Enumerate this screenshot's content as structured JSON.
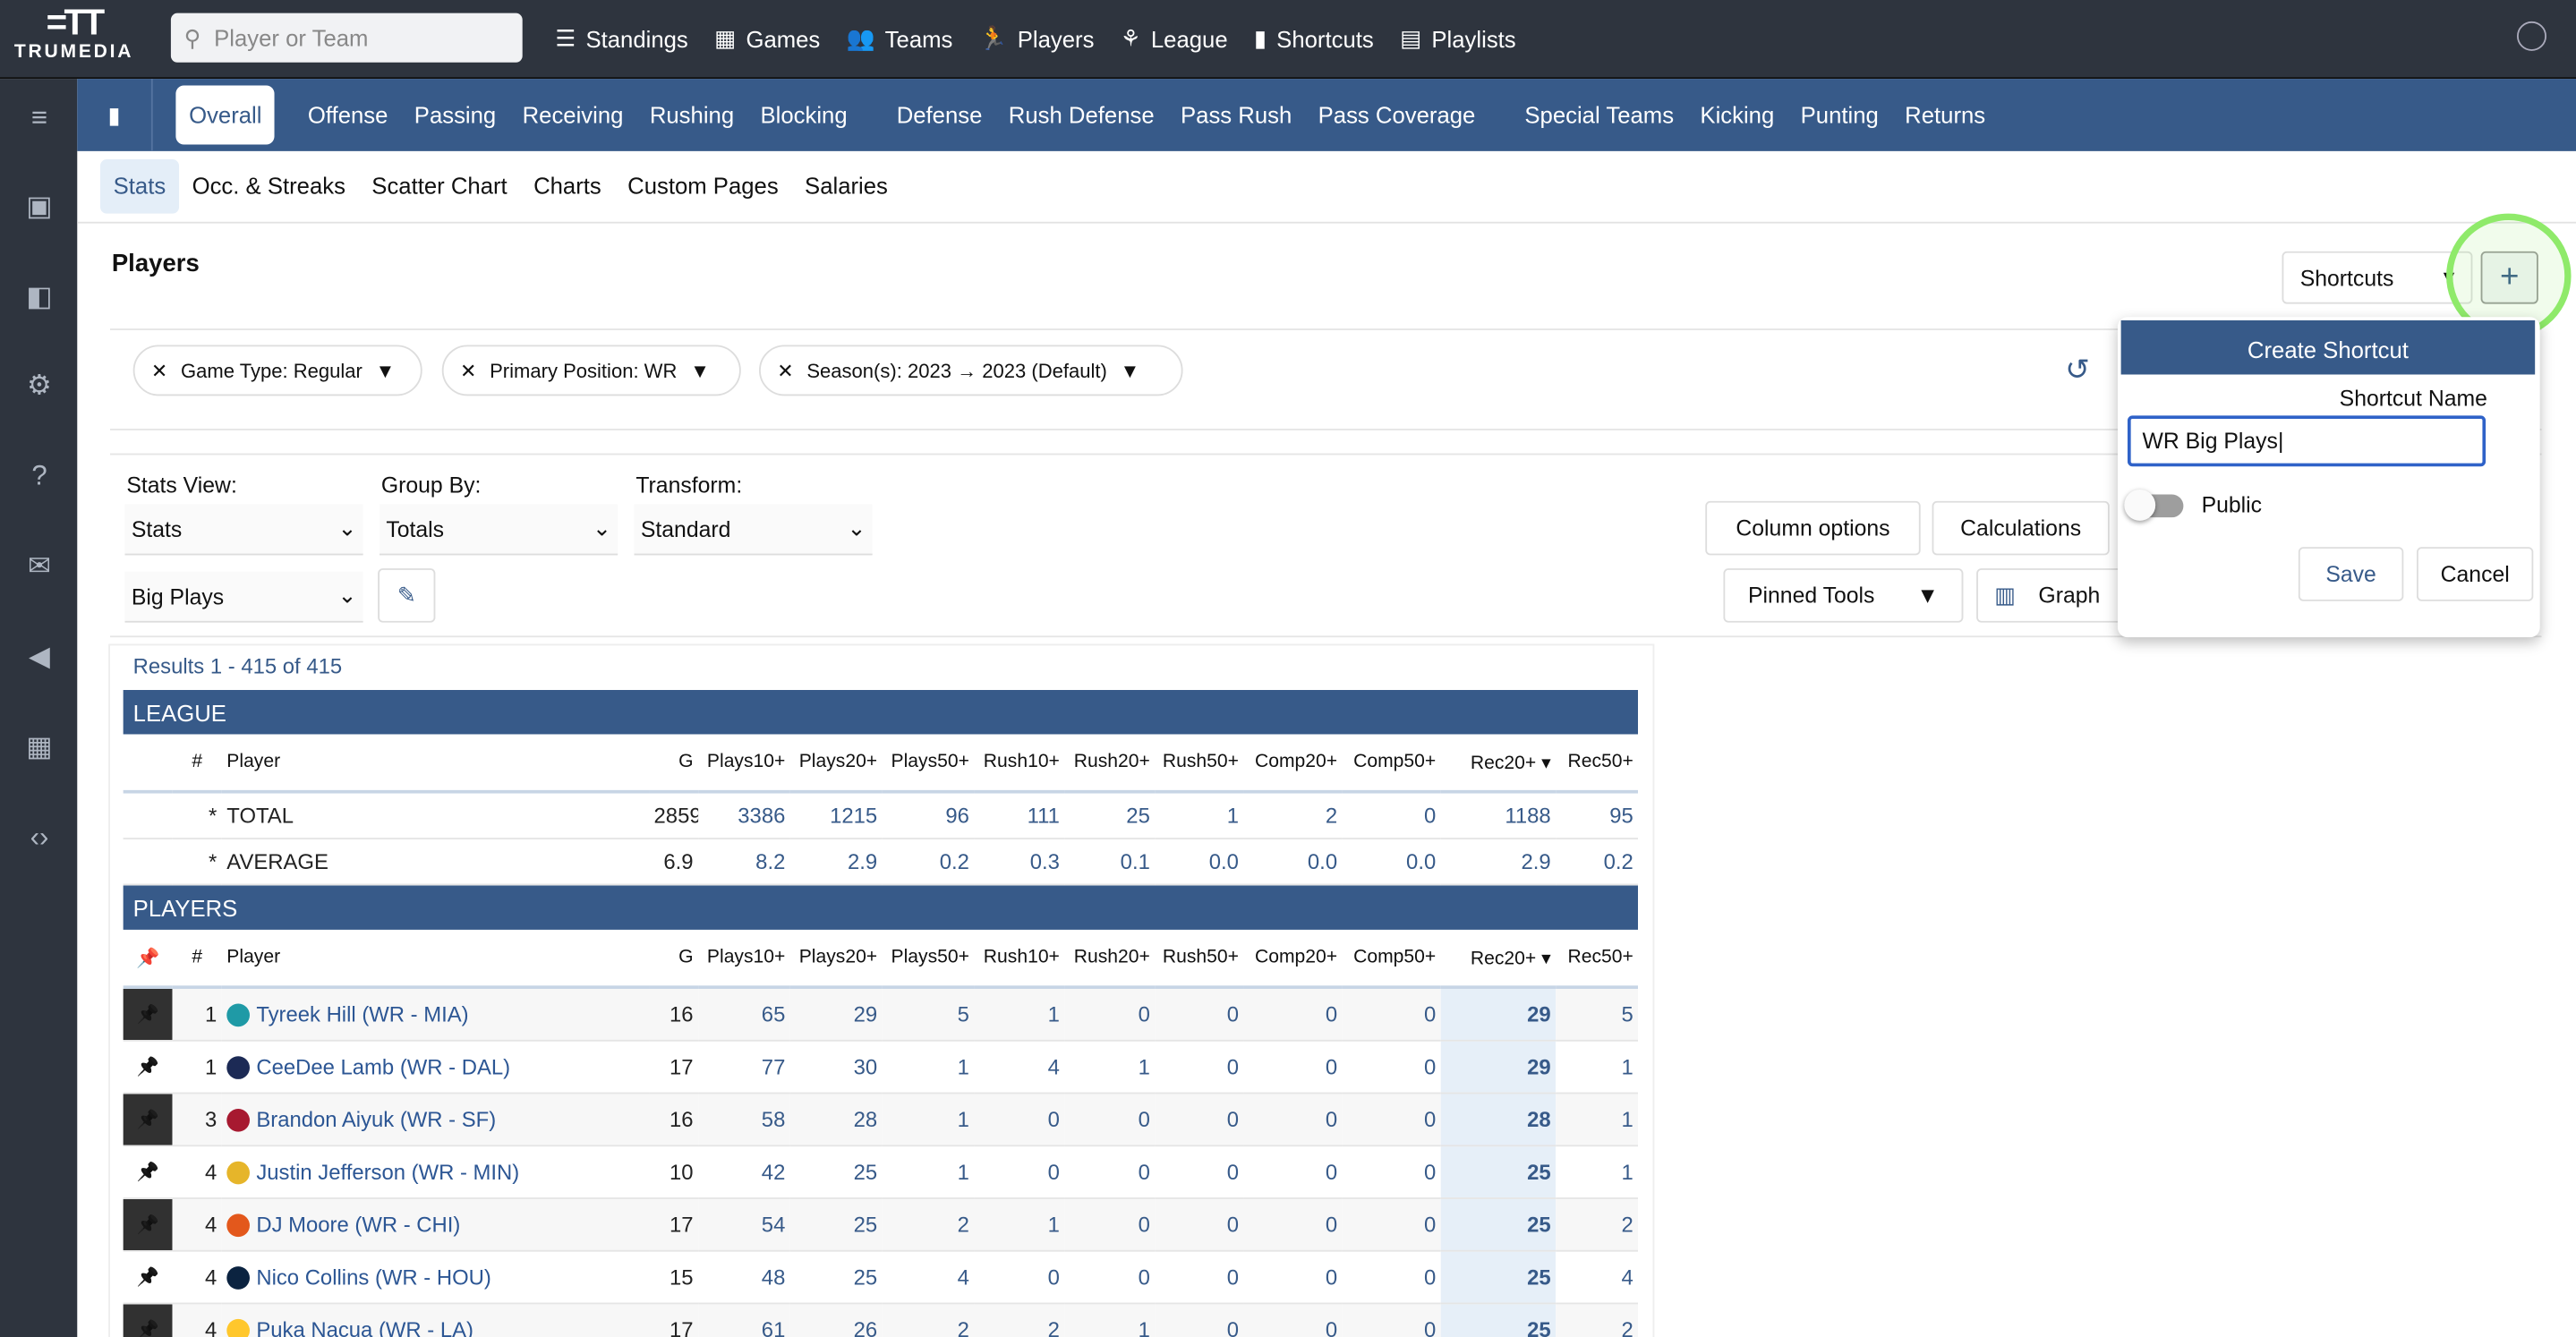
{
  "brand": {
    "name": "TRUMEDIA"
  },
  "search": {
    "placeholder": "Player or Team"
  },
  "top_nav": [
    {
      "label": "Standings",
      "icon": "list-icon"
    },
    {
      "label": "Games",
      "icon": "grid-icon"
    },
    {
      "label": "Teams",
      "icon": "users-icon"
    },
    {
      "label": "Players",
      "icon": "runner-icon"
    },
    {
      "label": "League",
      "icon": "league-icon"
    },
    {
      "label": "Shortcuts",
      "icon": "bookmark-icon"
    },
    {
      "label": "Playlists",
      "icon": "playlist-icon"
    }
  ],
  "category_tabs": [
    "Overall",
    "Offense",
    "Passing",
    "Receiving",
    "Rushing",
    "Blocking",
    "Defense",
    "Rush Defense",
    "Pass Rush",
    "Pass Coverage",
    "Special Teams",
    "Kicking",
    "Punting",
    "Returns"
  ],
  "sub_tabs": [
    "Stats",
    "Occ. & Streaks",
    "Scatter Chart",
    "Charts",
    "Custom Pages",
    "Salaries"
  ],
  "page_title": "Players",
  "filters": [
    "Game Type: Regular",
    "Primary Position: WR",
    "Season(s): 2023 → 2023 (Default)"
  ],
  "controls": {
    "stats_view_label": "Stats View:",
    "stats_view": "Stats",
    "group_by_label": "Group By:",
    "group_by": "Totals",
    "transform_label": "Transform:",
    "transform": "Standard",
    "preset": "Big Plays",
    "column_options": "Column options",
    "calculations": "Calculations",
    "pinned_tools": "Pinned Tools",
    "graph": "Graph"
  },
  "shortcuts": {
    "label": "Shortcuts",
    "add": "+"
  },
  "popup": {
    "title": "Create Shortcut",
    "name_label": "Shortcut Name",
    "name_value": "WR Big Plays",
    "public_label": "Public",
    "public_on": false,
    "save": "Save",
    "cancel": "Cancel"
  },
  "results_text": "Results 1 - 415 of 415",
  "columns": [
    "#",
    "Player",
    "G",
    "Plays10+",
    "Plays20+",
    "Plays50+",
    "Rush10+",
    "Rush20+",
    "Rush50+",
    "Comp20+",
    "Comp50+",
    "Rec20+",
    "Rec50+"
  ],
  "league": {
    "title": "LEAGUE",
    "rows": [
      {
        "rank": "*",
        "player": "TOTAL",
        "vals": [
          "2859",
          "3386",
          "1215",
          "96",
          "111",
          "25",
          "1",
          "2",
          "0",
          "1188",
          "95"
        ]
      },
      {
        "rank": "*",
        "player": "AVERAGE",
        "vals": [
          "6.9",
          "8.2",
          "2.9",
          "0.2",
          "0.3",
          "0.1",
          "0.0",
          "0.0",
          "0.0",
          "2.9",
          "0.2"
        ]
      }
    ]
  },
  "players": {
    "title": "PLAYERS",
    "rows": [
      {
        "rank": "1",
        "player": "Tyreek Hill (WR - MIA)",
        "team_color": "#1f9aa6",
        "vals": [
          "16",
          "65",
          "29",
          "5",
          "1",
          "0",
          "0",
          "0",
          "0",
          "29",
          "5"
        ]
      },
      {
        "rank": "1",
        "player": "CeeDee Lamb (WR - DAL)",
        "team_color": "#1c2a55",
        "vals": [
          "17",
          "77",
          "30",
          "1",
          "4",
          "1",
          "0",
          "0",
          "0",
          "29",
          "1"
        ]
      },
      {
        "rank": "3",
        "player": "Brandon Aiyuk (WR - SF)",
        "team_color": "#a71930",
        "vals": [
          "16",
          "58",
          "28",
          "1",
          "0",
          "0",
          "0",
          "0",
          "0",
          "28",
          "1"
        ]
      },
      {
        "rank": "4",
        "player": "Justin Jefferson (WR - MIN)",
        "team_color": "#e6b52a",
        "vals": [
          "10",
          "42",
          "25",
          "1",
          "0",
          "0",
          "0",
          "0",
          "0",
          "25",
          "1"
        ]
      },
      {
        "rank": "4",
        "player": "DJ Moore (WR - CHI)",
        "team_color": "#e3581c",
        "vals": [
          "17",
          "54",
          "25",
          "2",
          "1",
          "0",
          "0",
          "0",
          "0",
          "25",
          "2"
        ]
      },
      {
        "rank": "4",
        "player": "Nico Collins (WR - HOU)",
        "team_color": "#0b2340",
        "vals": [
          "15",
          "48",
          "25",
          "4",
          "0",
          "0",
          "0",
          "0",
          "0",
          "25",
          "4"
        ]
      },
      {
        "rank": "4",
        "player": "Puka Nacua (WR - LA)",
        "team_color": "#ffc72c",
        "vals": [
          "17",
          "61",
          "26",
          "2",
          "2",
          "1",
          "0",
          "0",
          "0",
          "25",
          "2"
        ]
      }
    ]
  }
}
